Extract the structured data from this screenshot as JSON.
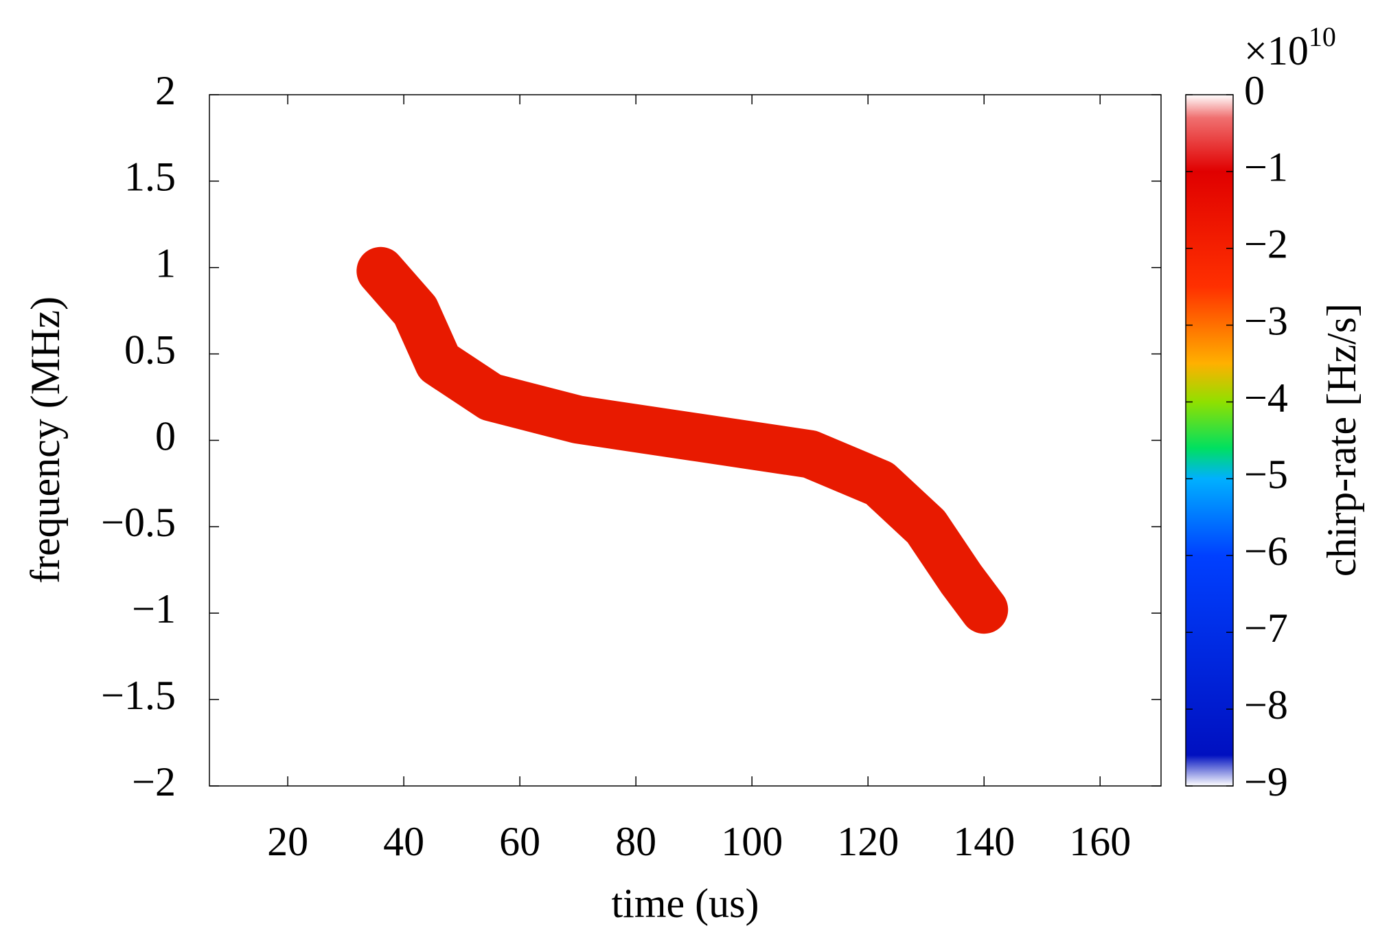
{
  "chart_data": {
    "type": "heatmap",
    "xlabel": "time (us)",
    "ylabel": "frequency (MHz)",
    "xlim": [
      6.5,
      170.5
    ],
    "xticks": [
      20,
      40,
      60,
      80,
      100,
      120,
      140,
      160
    ],
    "ylim": [
      -2,
      2
    ],
    "yticks": [
      {
        "value": -2,
        "label": "−2"
      },
      {
        "value": -1.5,
        "label": "−1.5"
      },
      {
        "value": -1,
        "label": "−1"
      },
      {
        "value": -0.5,
        "label": "−0.5"
      },
      0,
      0.5,
      1,
      1.5,
      2
    ],
    "x": [
      36,
      42,
      46,
      55,
      70,
      90,
      110,
      122,
      130,
      136,
      140
    ],
    "values": [
      0.98,
      0.75,
      0.45,
      0.25,
      0.12,
      0.02,
      -0.08,
      -0.25,
      -0.5,
      -0.8,
      -0.98
    ],
    "color": "#e81a00",
    "colorbar": {
      "label": "chirp-rate [Hz/s]",
      "scale_base": "×10",
      "scale_exponent": "10",
      "clim": [
        -9,
        0
      ],
      "ticks": [
        {
          "value": -9,
          "label": "−9"
        },
        {
          "value": -8,
          "label": "−8"
        },
        {
          "value": -7,
          "label": "−7"
        },
        {
          "value": -6,
          "label": "−6"
        },
        {
          "value": -5,
          "label": "−5"
        },
        {
          "value": -4,
          "label": "−4"
        },
        {
          "value": -3,
          "label": "−3"
        },
        {
          "value": -2,
          "label": "−2"
        },
        {
          "value": -1,
          "label": "−1"
        },
        0
      ],
      "colormap": [
        {
          "value": -9,
          "color": "#ffffff"
        },
        {
          "value": -8.6,
          "color": "#0010c0"
        },
        {
          "value": -6,
          "color": "#0040ff"
        },
        {
          "value": -5,
          "color": "#00b0ff"
        },
        {
          "value": -4.6,
          "color": "#00e060"
        },
        {
          "value": -4,
          "color": "#90e000"
        },
        {
          "value": -3.5,
          "color": "#ffb000"
        },
        {
          "value": -2.5,
          "color": "#ff3000"
        },
        {
          "value": -1,
          "color": "#e00000"
        },
        {
          "value": -0.3,
          "color": "#f07070"
        },
        {
          "value": 0,
          "color": "#ffffff"
        }
      ]
    }
  }
}
